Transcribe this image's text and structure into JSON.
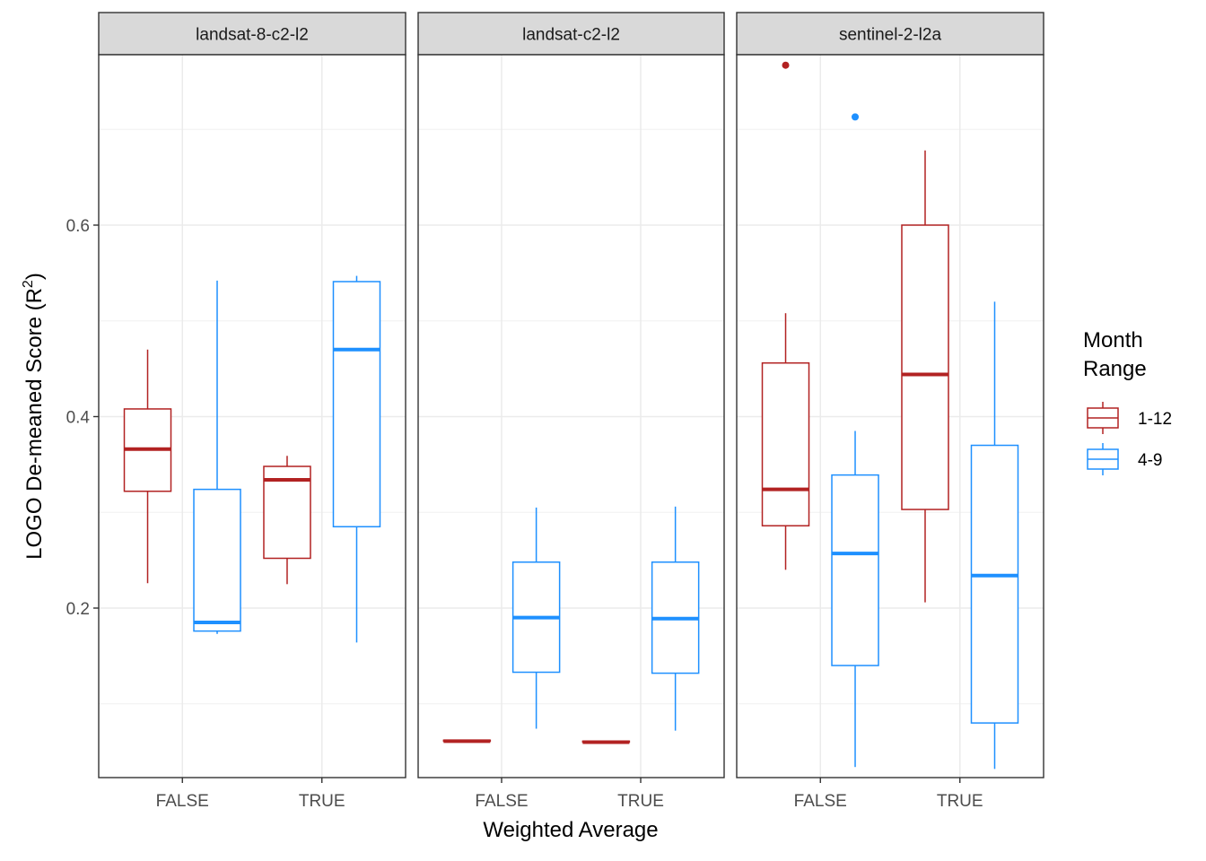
{
  "chart_data": {
    "type": "boxplot",
    "xlabel": "Weighted Average",
    "ylabel_main": "LOGO De-meaned Score (R",
    "ylabel_sup": "2",
    "ylabel_end": ")",
    "ylim": [
      0.03,
      0.78
    ],
    "yticks": [
      0.2,
      0.4,
      0.6
    ],
    "ytick_labels": [
      "0.2",
      "0.4",
      "0.6"
    ],
    "categories": [
      "FALSE",
      "TRUE"
    ],
    "legend": {
      "title_line1": "Month",
      "title_line2": "Range",
      "placement": "right",
      "entries": [
        {
          "name": "1-12",
          "color": "#b22222"
        },
        {
          "name": "4-9",
          "color": "#1e90ff"
        }
      ]
    },
    "grid": true,
    "facets": [
      {
        "name": "landsat-8-c2-l2",
        "boxes": [
          {
            "x": "FALSE",
            "group": "1-12",
            "lower_whisker": 0.226,
            "q1": 0.322,
            "median": 0.366,
            "q3": 0.408,
            "upper_whisker": 0.47,
            "outliers": []
          },
          {
            "x": "FALSE",
            "group": "4-9",
            "lower_whisker": 0.173,
            "q1": 0.176,
            "median": 0.185,
            "q3": 0.324,
            "upper_whisker": 0.542,
            "outliers": []
          },
          {
            "x": "TRUE",
            "group": "1-12",
            "lower_whisker": 0.225,
            "q1": 0.252,
            "median": 0.334,
            "q3": 0.348,
            "upper_whisker": 0.359,
            "outliers": []
          },
          {
            "x": "TRUE",
            "group": "4-9",
            "lower_whisker": 0.164,
            "q1": 0.285,
            "median": 0.47,
            "q3": 0.541,
            "upper_whisker": 0.547,
            "outliers": []
          }
        ]
      },
      {
        "name": "landsat-c2-l2",
        "boxes": [
          {
            "x": "FALSE",
            "group": "1-12",
            "lower_whisker": 0.061,
            "q1": 0.061,
            "median": 0.061,
            "q3": 0.062,
            "upper_whisker": 0.062,
            "outliers": []
          },
          {
            "x": "FALSE",
            "group": "4-9",
            "lower_whisker": 0.074,
            "q1": 0.133,
            "median": 0.19,
            "q3": 0.248,
            "upper_whisker": 0.305,
            "outliers": []
          },
          {
            "x": "TRUE",
            "group": "1-12",
            "lower_whisker": 0.059,
            "q1": 0.06,
            "median": 0.06,
            "q3": 0.061,
            "upper_whisker": 0.061,
            "outliers": []
          },
          {
            "x": "TRUE",
            "group": "4-9",
            "lower_whisker": 0.072,
            "q1": 0.132,
            "median": 0.189,
            "q3": 0.248,
            "upper_whisker": 0.306,
            "outliers": []
          }
        ]
      },
      {
        "name": "sentinel-2-l2a",
        "boxes": [
          {
            "x": "FALSE",
            "group": "1-12",
            "lower_whisker": 0.24,
            "q1": 0.286,
            "median": 0.324,
            "q3": 0.456,
            "upper_whisker": 0.508,
            "outliers": [
              0.767
            ]
          },
          {
            "x": "FALSE",
            "group": "4-9",
            "lower_whisker": 0.034,
            "q1": 0.14,
            "median": 0.257,
            "q3": 0.339,
            "upper_whisker": 0.385,
            "outliers": [
              0.713
            ]
          },
          {
            "x": "TRUE",
            "group": "1-12",
            "lower_whisker": 0.206,
            "q1": 0.303,
            "median": 0.444,
            "q3": 0.6,
            "upper_whisker": 0.678,
            "outliers": []
          },
          {
            "x": "TRUE",
            "group": "4-9",
            "lower_whisker": 0.032,
            "q1": 0.08,
            "median": 0.234,
            "q3": 0.37,
            "upper_whisker": 0.52,
            "outliers": []
          }
        ]
      }
    ]
  }
}
